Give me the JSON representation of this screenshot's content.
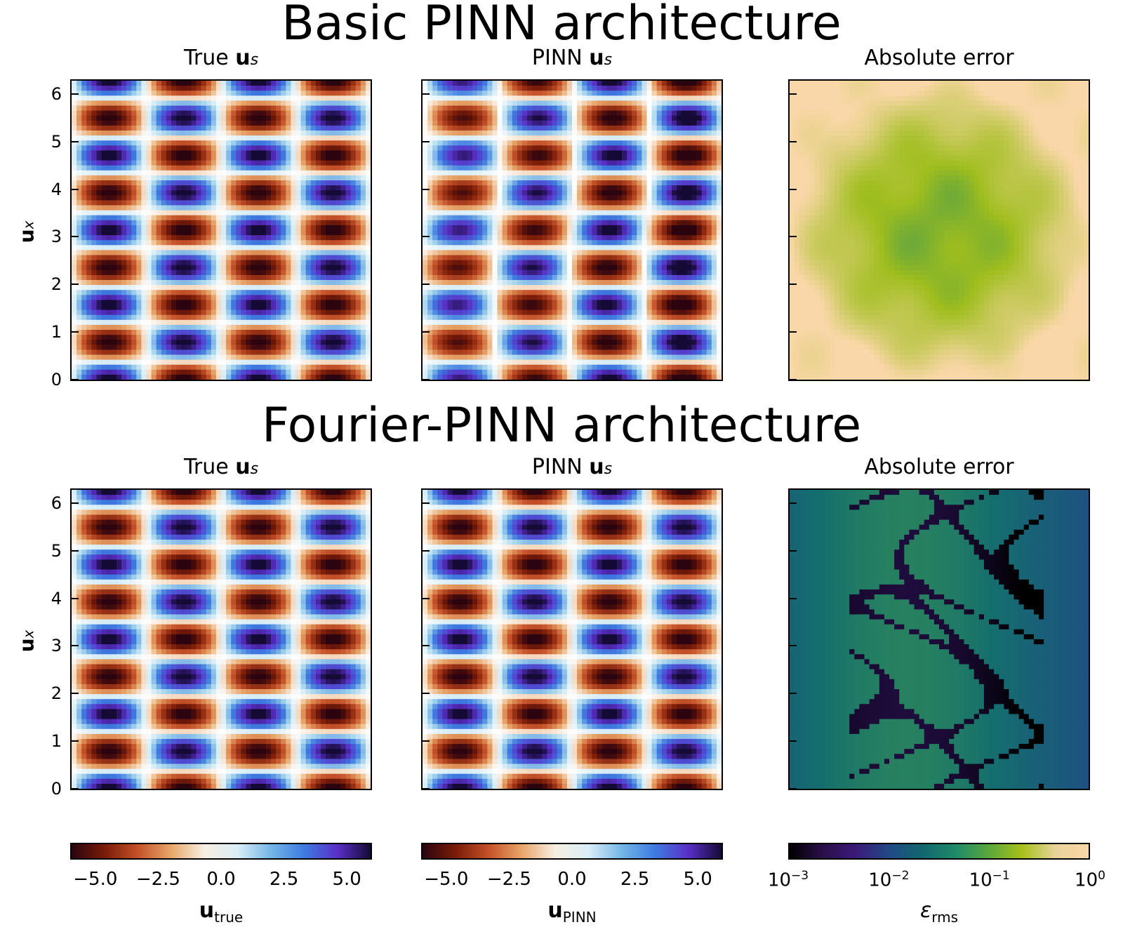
{
  "titles": {
    "row1": "Basic PINN architecture",
    "row2": "Fourier-PINN architecture"
  },
  "panel_titles": {
    "true_prefix": "True ",
    "pinn_prefix": "PINN ",
    "bold_symbol": "u",
    "subscript": "s",
    "error": "Absolute error"
  },
  "y_axis": {
    "label_bold": "u",
    "label_sub": "x",
    "ticks": [
      "0",
      "1",
      "2",
      "3",
      "4",
      "5",
      "6"
    ]
  },
  "colorbars": {
    "true": {
      "ticks": [
        "−5.0",
        "−2.5",
        "0.0",
        "2.5",
        "5.0"
      ],
      "label_bold": "u",
      "label_sub": "true"
    },
    "pinn": {
      "ticks": [
        "−5.0",
        "−2.5",
        "0.0",
        "2.5",
        "5.0"
      ],
      "label_bold": "u",
      "label_sub": "PINN"
    },
    "error": {
      "ticks": [
        {
          "base": "10",
          "exp": "−3"
        },
        {
          "base": "10",
          "exp": "−2"
        },
        {
          "base": "10",
          "exp": "−1"
        },
        {
          "base": "10",
          "exp": "0"
        }
      ],
      "label_sym": "ε",
      "label_sub": "rms"
    }
  },
  "chart_data": [
    {
      "type": "heatmap",
      "title": "True u_s",
      "row": "Basic PINN architecture",
      "ylabel": "u_x",
      "ylim": [
        0,
        6.28
      ],
      "colormap": "diverging",
      "clim": [
        -6,
        6
      ],
      "description_values": "periodic field with 4 columns of cells and ~8 alternating rows of red(-) and blue(+) blobs"
    },
    {
      "type": "heatmap",
      "title": "PINN u_s",
      "row": "Basic PINN architecture",
      "ylim": [
        0,
        6.28
      ],
      "clim": [
        -6,
        6
      ]
    },
    {
      "type": "heatmap",
      "title": "Absolute error",
      "row": "Basic PINN architecture",
      "ylim": [
        0,
        6.28
      ],
      "scale": "log",
      "clim": [
        0.001,
        1
      ]
    },
    {
      "type": "heatmap",
      "title": "True u_s",
      "row": "Fourier-PINN architecture",
      "ylabel": "u_x",
      "ylim": [
        0,
        6.28
      ],
      "clim": [
        -6,
        6
      ]
    },
    {
      "type": "heatmap",
      "title": "PINN u_s",
      "row": "Fourier-PINN architecture",
      "ylim": [
        0,
        6.28
      ],
      "clim": [
        -6,
        6
      ]
    },
    {
      "type": "heatmap",
      "title": "Absolute error",
      "row": "Fourier-PINN architecture",
      "ylim": [
        0,
        6.28
      ],
      "scale": "log",
      "clim": [
        0.001,
        1
      ]
    }
  ],
  "colors": {
    "neg": "#7a1c08",
    "neg_mid": "#d0793a",
    "zero": "#ffffff",
    "pos_mid": "#4da3e0",
    "pos": "#4a1a9a",
    "err_low": "#000000",
    "err_mid": "#1c6f72",
    "err_high": "#fad7a8"
  }
}
